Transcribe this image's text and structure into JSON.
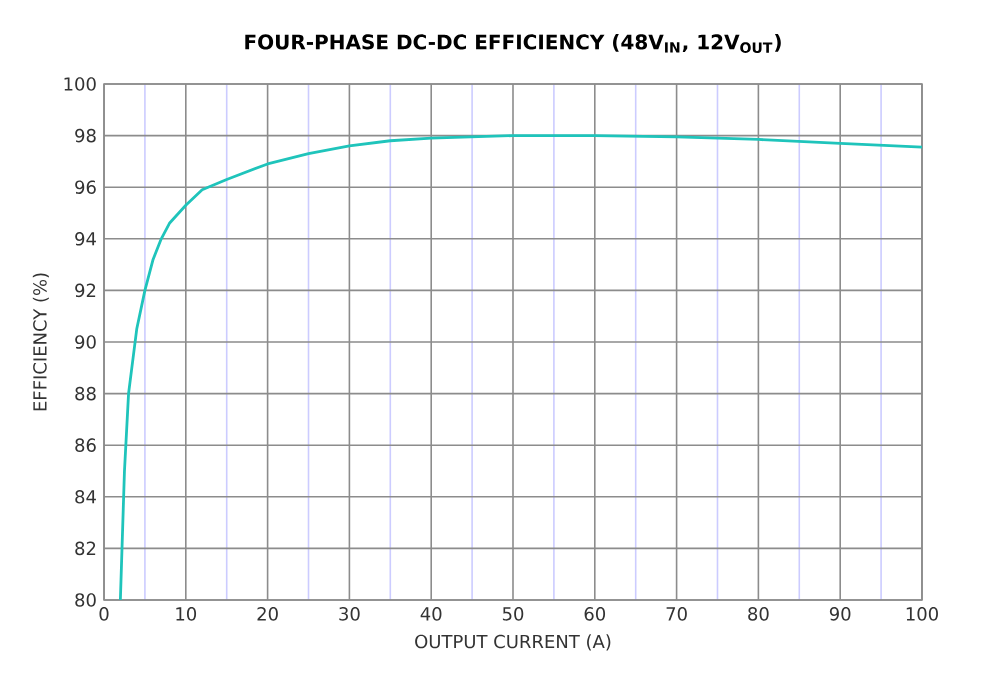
{
  "chart_data": {
    "type": "line",
    "title": "FOUR-PHASE DC-DC EFFICIENCY (48V$_{IN}$, 12V$_{OUT}$)",
    "xlabel": "OUTPUT CURRENT (A)",
    "ylabel": "EFFICIENCY (%)",
    "xlim": [
      0,
      100
    ],
    "ylim": [
      80,
      100
    ],
    "xticks": [
      0,
      {
        "value": 5,
        "label": null
      },
      10,
      {
        "value": 15,
        "label": null
      },
      20,
      {
        "value": 25,
        "label": null
      },
      30,
      {
        "value": 35,
        "label": null
      },
      40,
      {
        "value": 45,
        "label": null
      },
      50,
      {
        "value": 55,
        "label": null
      },
      60,
      {
        "value": 65,
        "label": null
      },
      70,
      {
        "value": 75,
        "label": null
      },
      80,
      {
        "value": 85,
        "label": null
      },
      90,
      {
        "value": 95,
        "label": null
      },
      100
    ],
    "yticks": [
      80,
      82,
      84,
      86,
      88,
      90,
      92,
      94,
      96,
      98,
      100
    ],
    "grid": true,
    "marker": "none",
    "line_style": "solid",
    "series": [
      {
        "color": "#1fc4bb",
        "x": [
          2,
          2.5,
          3,
          4,
          5,
          6,
          7,
          8,
          10,
          12,
          15,
          20,
          25,
          30,
          35,
          40,
          50,
          60,
          70,
          80,
          90,
          100
        ],
        "values": [
          80,
          85,
          88,
          90.5,
          92,
          93.2,
          94,
          94.6,
          95.3,
          95.9,
          96.3,
          96.9,
          97.3,
          97.6,
          97.8,
          97.9,
          98,
          98,
          97.95,
          97.85,
          97.7,
          97.55
        ]
      }
    ]
  }
}
